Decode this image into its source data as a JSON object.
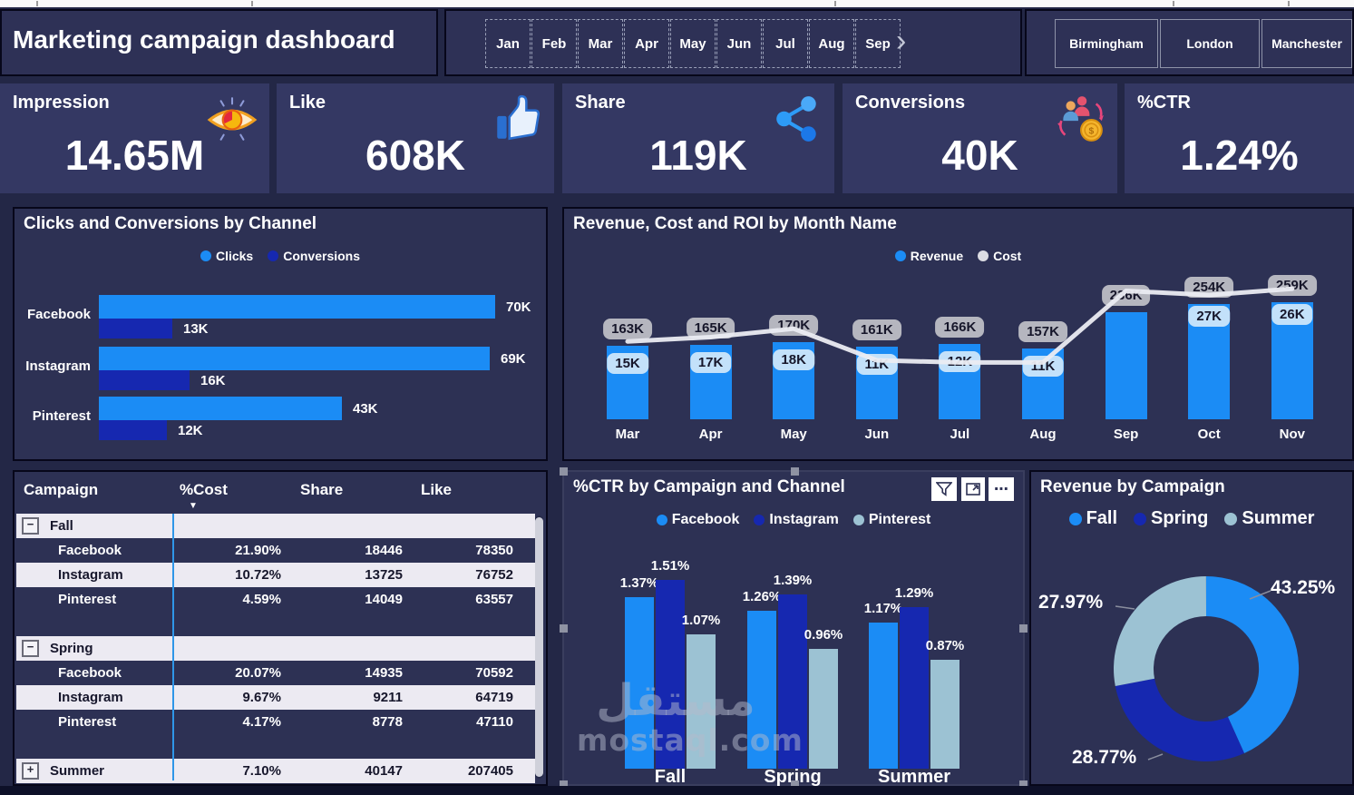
{
  "app": {
    "title": "Marketing campaign dashboard"
  },
  "slicers": {
    "months": [
      "Jan",
      "Feb",
      "Mar",
      "Apr",
      "May",
      "Jun",
      "Jul",
      "Aug",
      "Sep"
    ],
    "cities": [
      "Birmingham",
      "London",
      "Manchester"
    ]
  },
  "kpis": [
    {
      "label": "Impression",
      "value": "14.65M",
      "icon": "eye-icon"
    },
    {
      "label": "Like",
      "value": "608K",
      "icon": "thumbs-up-icon"
    },
    {
      "label": "Share",
      "value": "119K",
      "icon": "share-icon"
    },
    {
      "label": "Conversions",
      "value": "40K",
      "icon": "people-coin-icon"
    },
    {
      "label": "%CTR",
      "value": "1.24%",
      "icon": ""
    }
  ],
  "chart_data": [
    {
      "type": "bar",
      "orientation": "horizontal",
      "title": "Clicks and Conversions by Channel",
      "categories": [
        "Facebook",
        "Instagram",
        "Pinterest"
      ],
      "series": [
        {
          "name": "Clicks",
          "values": [
            70,
            69,
            43
          ],
          "labels": [
            "70K",
            "69K",
            "43K"
          ],
          "color": "#1b8cf5"
        },
        {
          "name": "Conversions",
          "values": [
            13,
            16,
            12
          ],
          "labels": [
            "13K",
            "16K",
            "12K"
          ],
          "color": "#1628b0"
        }
      ],
      "xlim": [
        0,
        75
      ],
      "legend_position": "top"
    },
    {
      "type": "combo",
      "title": "Revenue, Cost and ROI by Month Name",
      "categories": [
        "Mar",
        "Apr",
        "May",
        "Jun",
        "Jul",
        "Aug",
        "Sep",
        "Oct",
        "Nov"
      ],
      "series": [
        {
          "name": "Revenue",
          "type": "column",
          "values": [
            163,
            165,
            170,
            161,
            166,
            157,
            236,
            254,
            259
          ],
          "labels": [
            "163K",
            "165K",
            "170K",
            "161K",
            "166K",
            "157K",
            "236K",
            "254K",
            "259K"
          ],
          "color": "#1b8cf5"
        },
        {
          "name": "Cost",
          "type": "label",
          "values": [
            15,
            17,
            18,
            11,
            12,
            11,
            null,
            27,
            26
          ],
          "labels": [
            "15K",
            "17K",
            "18K",
            "11K",
            "12K",
            "11K",
            "",
            "27K",
            "26K"
          ],
          "color": "#dcdde3"
        },
        {
          "name": "ROI",
          "type": "line",
          "relative_heights": [
            0.37,
            0.39,
            0.43,
            0.28,
            0.27,
            0.27,
            0.61,
            0.59,
            0.62
          ],
          "color": "#ebecf2"
        }
      ],
      "ylim": [
        0,
        280
      ],
      "legend_position": "top"
    },
    {
      "type": "bar",
      "title": "%CTR by Campaign and Channel",
      "categories": [
        "Fall",
        "Spring",
        "Summer"
      ],
      "series": [
        {
          "name": "Facebook",
          "values": [
            1.37,
            1.26,
            1.17
          ],
          "labels": [
            "1.37%",
            "1.26%",
            "1.17%"
          ],
          "color": "#1b8cf5"
        },
        {
          "name": "Instagram",
          "values": [
            1.51,
            1.39,
            1.29
          ],
          "labels": [
            "1.51%",
            "1.39%",
            "1.29%"
          ],
          "color": "#1628b0"
        },
        {
          "name": "Pinterest",
          "values": [
            1.07,
            0.96,
            0.87
          ],
          "labels": [
            "1.07%",
            "0.96%",
            "0.87%"
          ],
          "color": "#9cc2d3"
        }
      ],
      "ylim": [
        0,
        1.7
      ],
      "legend_position": "top"
    },
    {
      "type": "pie",
      "donut": true,
      "title": "Revenue by Campaign",
      "categories": [
        "Fall",
        "Spring",
        "Summer"
      ],
      "values": [
        43.25,
        28.77,
        27.97
      ],
      "labels": [
        "43.25%",
        "28.77%",
        "27.97%"
      ],
      "colors": [
        "#1b8cf5",
        "#1628b0",
        "#9cc2d3"
      ],
      "legend_position": "top"
    }
  ],
  "table": {
    "columns": [
      "Campaign",
      "%Cost",
      "Share",
      "Like"
    ],
    "sort": {
      "column": "%Cost",
      "direction": "desc"
    },
    "rows": [
      {
        "kind": "group",
        "expanded": true,
        "campaign": "Fall",
        "cost": "",
        "share": "",
        "like": ""
      },
      {
        "kind": "item",
        "shade": "dark",
        "campaign": "Facebook",
        "cost": "21.90%",
        "share": "18446",
        "like": "78350"
      },
      {
        "kind": "item",
        "shade": "light",
        "campaign": "Instagram",
        "cost": "10.72%",
        "share": "13725",
        "like": "76752"
      },
      {
        "kind": "item",
        "shade": "dark",
        "campaign": "Pinterest",
        "cost": "4.59%",
        "share": "14049",
        "like": "63557"
      },
      {
        "kind": "spacer"
      },
      {
        "kind": "group",
        "expanded": true,
        "campaign": "Spring",
        "cost": "",
        "share": "",
        "like": ""
      },
      {
        "kind": "item",
        "shade": "dark",
        "campaign": "Facebook",
        "cost": "20.07%",
        "share": "14935",
        "like": "70592"
      },
      {
        "kind": "item",
        "shade": "light",
        "campaign": "Instagram",
        "cost": "9.67%",
        "share": "9211",
        "like": "64719"
      },
      {
        "kind": "item",
        "shade": "dark",
        "campaign": "Pinterest",
        "cost": "4.17%",
        "share": "8778",
        "like": "47110"
      },
      {
        "kind": "spacer"
      },
      {
        "kind": "group",
        "expanded": false,
        "campaign": "Summer",
        "cost": "7.10%",
        "share": "40147",
        "like": "207405"
      }
    ]
  },
  "watermark": {
    "text_primary": "مستقل",
    "text_secondary": "mostaql.com"
  },
  "colors": {
    "canvas": "#232746",
    "panel": "#2d3154",
    "panel_alt": "#343863",
    "accent_blue": "#1b8cf5",
    "dark_blue": "#1628b0",
    "teal": "#9cc2d3",
    "revenue_label_bg": "#b5b6bf",
    "cost_label_bg": "#c3e1fa",
    "roi_line": "#ebecf2",
    "table_light_row": "#eceaf2",
    "table_guide_line": "#2f96e8"
  }
}
